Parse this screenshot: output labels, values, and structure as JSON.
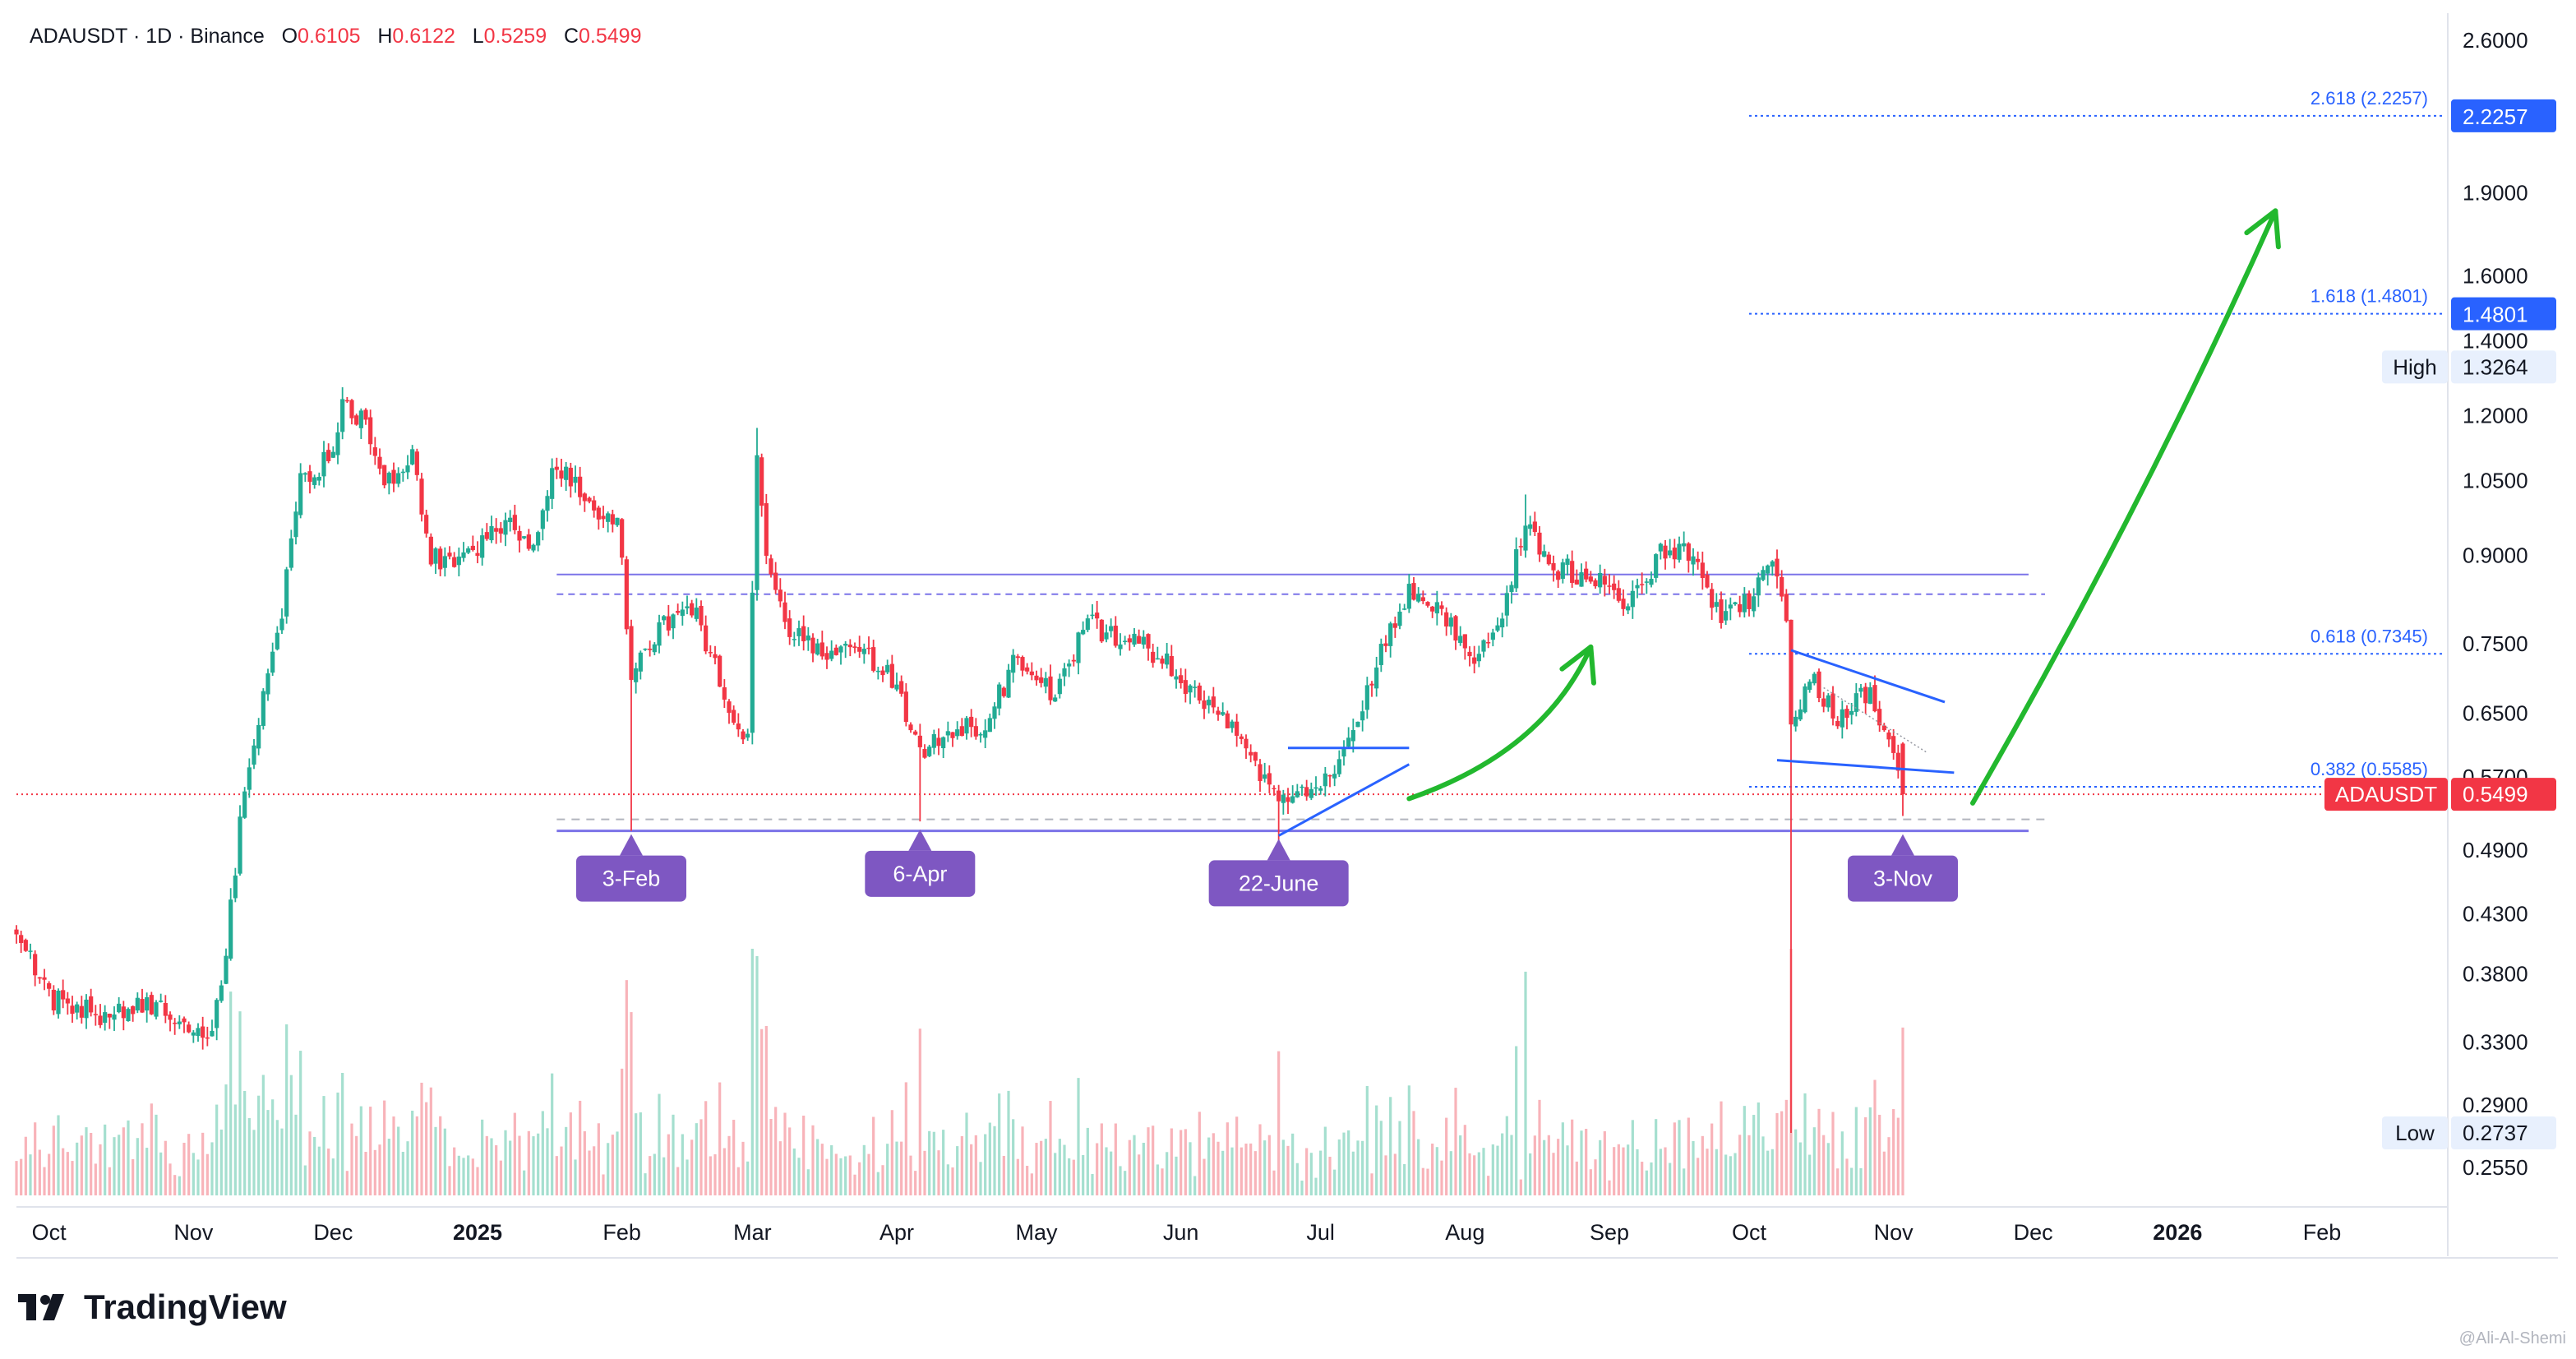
{
  "header": {
    "symbol": "ADAUSDT · 1D · Binance",
    "o_label": "O",
    "o": "0.6105",
    "h_label": "H",
    "h": "0.6122",
    "l_label": "L",
    "l": "0.5259",
    "c_label": "C",
    "c": "0.5499"
  },
  "brand": {
    "name": "TradingView"
  },
  "watermark": "@Ali-Al-Shemi",
  "colors": {
    "up": "#22ab94",
    "down": "#f23645",
    "fib": "#2962ff",
    "range": "#7b73e8",
    "arrow": "#22b82e",
    "callout": "#7e57c2",
    "price_tag": "#f23645"
  },
  "chart_data": {
    "type": "candlestick",
    "series_name": "ADAUSDT",
    "timeframe": "1D",
    "exchange": "Binance",
    "ohlc_last": {
      "open": 0.6105,
      "high": 0.6122,
      "low": 0.5259,
      "close": 0.5499
    },
    "y_scale": "log",
    "ylim": [
      0.235,
      2.75
    ],
    "xlim": [
      "2024-09-24",
      "2026-02-28"
    ],
    "y_ticks": [
      {
        "v": 2.6,
        "label": "2.6000"
      },
      {
        "v": 1.9,
        "label": "1.9000"
      },
      {
        "v": 1.6,
        "label": "1.6000"
      },
      {
        "v": 1.4,
        "label": "1.4000"
      },
      {
        "v": 1.2,
        "label": "1.2000"
      },
      {
        "v": 1.05,
        "label": "1.0500"
      },
      {
        "v": 0.9,
        "label": "0.9000"
      },
      {
        "v": 0.75,
        "label": "0.7500"
      },
      {
        "v": 0.65,
        "label": "0.6500"
      },
      {
        "v": 0.57,
        "label": "0.5700"
      },
      {
        "v": 0.49,
        "label": "0.4900"
      },
      {
        "v": 0.43,
        "label": "0.4300"
      },
      {
        "v": 0.38,
        "label": "0.3800"
      },
      {
        "v": 0.33,
        "label": "0.3300"
      },
      {
        "v": 0.29,
        "label": "0.2900"
      },
      {
        "v": 0.255,
        "label": "0.2550"
      }
    ],
    "x_ticks": [
      {
        "date": "2024-10-01",
        "label": "Oct",
        "bold": false
      },
      {
        "date": "2024-11-01",
        "label": "Nov",
        "bold": false
      },
      {
        "date": "2024-12-01",
        "label": "Dec",
        "bold": false
      },
      {
        "date": "2025-01-01",
        "label": "2025",
        "bold": true
      },
      {
        "date": "2025-02-01",
        "label": "Feb",
        "bold": false
      },
      {
        "date": "2025-03-01",
        "label": "Mar",
        "bold": false
      },
      {
        "date": "2025-04-01",
        "label": "Apr",
        "bold": false
      },
      {
        "date": "2025-05-01",
        "label": "May",
        "bold": false
      },
      {
        "date": "2025-06-01",
        "label": "Jun",
        "bold": false
      },
      {
        "date": "2025-07-01",
        "label": "Jul",
        "bold": false
      },
      {
        "date": "2025-08-01",
        "label": "Aug",
        "bold": false
      },
      {
        "date": "2025-09-01",
        "label": "Sep",
        "bold": false
      },
      {
        "date": "2025-10-01",
        "label": "Oct",
        "bold": false
      },
      {
        "date": "2025-11-01",
        "label": "Nov",
        "bold": false
      },
      {
        "date": "2025-12-01",
        "label": "Dec",
        "bold": false
      },
      {
        "date": "2026-01-01",
        "label": "2026",
        "bold": true
      },
      {
        "date": "2026-02-01",
        "label": "Feb",
        "bold": false
      }
    ],
    "price_path": [
      [
        "2024-09-24",
        0.41
      ],
      [
        "2024-10-02",
        0.36
      ],
      [
        "2024-10-12",
        0.35
      ],
      [
        "2024-10-22",
        0.36
      ],
      [
        "2024-10-30",
        0.34
      ],
      [
        "2024-11-05",
        0.33
      ],
      [
        "2024-11-08",
        0.4
      ],
      [
        "2024-11-12",
        0.56
      ],
      [
        "2024-11-16",
        0.68
      ],
      [
        "2024-11-20",
        0.8
      ],
      [
        "2024-11-24",
        1.04
      ],
      [
        "2024-11-30",
        1.1
      ],
      [
        "2024-12-03",
        1.23
      ],
      [
        "2024-12-08",
        1.18
      ],
      [
        "2024-12-12",
        1.05
      ],
      [
        "2024-12-18",
        1.1
      ],
      [
        "2024-12-22",
        0.9
      ],
      [
        "2024-12-28",
        0.88
      ],
      [
        "2025-01-02",
        0.92
      ],
      [
        "2025-01-08",
        0.98
      ],
      [
        "2025-01-12",
        0.9
      ],
      [
        "2025-01-18",
        1.09
      ],
      [
        "2025-01-25",
        1.0
      ],
      [
        "2025-01-31",
        0.98
      ],
      [
        "2025-02-03",
        0.7
      ],
      [
        "2025-02-10",
        0.78
      ],
      [
        "2025-02-17",
        0.8
      ],
      [
        "2025-02-24",
        0.66
      ],
      [
        "2025-02-28",
        0.62
      ],
      [
        "2025-03-02",
        1.13
      ],
      [
        "2025-03-04",
        0.9
      ],
      [
        "2025-03-08",
        0.78
      ],
      [
        "2025-03-16",
        0.74
      ],
      [
        "2025-03-24",
        0.75
      ],
      [
        "2025-04-01",
        0.69
      ],
      [
        "2025-04-06",
        0.6
      ],
      [
        "2025-04-12",
        0.63
      ],
      [
        "2025-04-20",
        0.63
      ],
      [
        "2025-04-26",
        0.72
      ],
      [
        "2025-05-05",
        0.68
      ],
      [
        "2025-05-12",
        0.78
      ],
      [
        "2025-05-20",
        0.76
      ],
      [
        "2025-05-28",
        0.73
      ],
      [
        "2025-06-05",
        0.67
      ],
      [
        "2025-06-14",
        0.62
      ],
      [
        "2025-06-22",
        0.54
      ],
      [
        "2025-06-28",
        0.56
      ],
      [
        "2025-07-05",
        0.58
      ],
      [
        "2025-07-12",
        0.7
      ],
      [
        "2025-07-20",
        0.84
      ],
      [
        "2025-07-27",
        0.8
      ],
      [
        "2025-08-02",
        0.72
      ],
      [
        "2025-08-08",
        0.78
      ],
      [
        "2025-08-14",
        0.95
      ],
      [
        "2025-08-20",
        0.88
      ],
      [
        "2025-08-28",
        0.86
      ],
      [
        "2025-09-05",
        0.82
      ],
      [
        "2025-09-12",
        0.9
      ],
      [
        "2025-09-18",
        0.9
      ],
      [
        "2025-09-25",
        0.79
      ],
      [
        "2025-10-01",
        0.82
      ],
      [
        "2025-10-06",
        0.88
      ],
      [
        "2025-10-09",
        0.8
      ],
      [
        "2025-10-10",
        0.64
      ],
      [
        "2025-10-14",
        0.7
      ],
      [
        "2025-10-20",
        0.64
      ],
      [
        "2025-10-27",
        0.68
      ],
      [
        "2025-10-31",
        0.62
      ],
      [
        "2025-11-03",
        0.55
      ]
    ],
    "key_wicks": [
      {
        "date": "2025-02-03",
        "low": 0.51
      },
      {
        "date": "2025-03-02",
        "high": 1.17
      },
      {
        "date": "2025-04-06",
        "low": 0.52
      },
      {
        "date": "2025-06-22",
        "low": 0.5
      },
      {
        "date": "2025-08-14",
        "high": 1.02
      },
      {
        "date": "2025-10-10",
        "low": 0.2737
      }
    ],
    "price_levels": [
      {
        "name": "High",
        "value": 1.3264,
        "label": "High",
        "price_label": "1.3264"
      },
      {
        "name": "Low",
        "value": 0.2737,
        "label": "Low",
        "price_label": "0.2737"
      }
    ],
    "current_price": {
      "symbol": "ADAUSDT",
      "value": 0.5499,
      "label": "0.5499"
    },
    "fib_levels": [
      {
        "label": "2.618 (2.2257)",
        "value": 2.2257,
        "price_tag": "2.2257"
      },
      {
        "label": "1.618 (1.4801)",
        "value": 1.4801,
        "price_tag": "1.4801"
      },
      {
        "label": "0.618 (0.7345)",
        "value": 0.7345,
        "price_tag": ""
      },
      {
        "label": "0.382 (0.5585)",
        "value": 0.5585,
        "price_tag": ""
      }
    ],
    "range_box": {
      "from": "2025-01-18",
      "to": "2025-11-30",
      "top": 0.865,
      "bottom": 0.51
    },
    "callouts": [
      {
        "date": "2025-02-03",
        "value": 0.51,
        "label": "3-Feb"
      },
      {
        "date": "2025-04-06",
        "value": 0.515,
        "label": "6-Apr"
      },
      {
        "date": "2025-06-22",
        "value": 0.505,
        "label": "22-June"
      },
      {
        "date": "2025-11-03",
        "value": 0.51,
        "label": "3-Nov"
      }
    ],
    "projection": [
      {
        "date": "2025-11-18",
        "value": 0.54
      },
      {
        "date": "2025-12-25",
        "value": 1.0
      },
      {
        "date": "2026-01-22",
        "value": 1.83
      }
    ],
    "grid": false,
    "legend": "none"
  }
}
